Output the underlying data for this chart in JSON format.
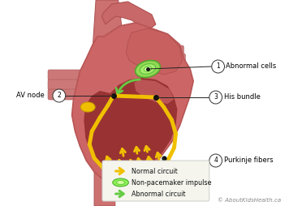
{
  "bg_color": "#ffffff",
  "copyright_text": "© AboutKidsHealth.ca",
  "labels": {
    "1": "Abnormal cells",
    "2": "AV node",
    "3": "His bundle",
    "4": "Purkinje fibers"
  },
  "heart_outer_color": "#cc6666",
  "heart_outer_edge": "#b85555",
  "heart_inner_color": "#993333",
  "heart_inner_edge": "#882222",
  "atria_color": "#bb5555",
  "vessel_color": "#cc7777",
  "vessel_edge": "#b06060",
  "arrow_yellow": "#f0c000",
  "arrow_yellow_edge": "#d4a800",
  "green_fill": "#66cc44",
  "green_edge": "#338822",
  "green_light": "#99ee66",
  "sa_node_color": "#f0c000",
  "node_dot": "#111111",
  "label_line_color": "#222222",
  "circle_bg": "#ffffff",
  "circle_edge": "#333333",
  "legend_bg": "#f5f5ee",
  "legend_edge": "#cccccc"
}
